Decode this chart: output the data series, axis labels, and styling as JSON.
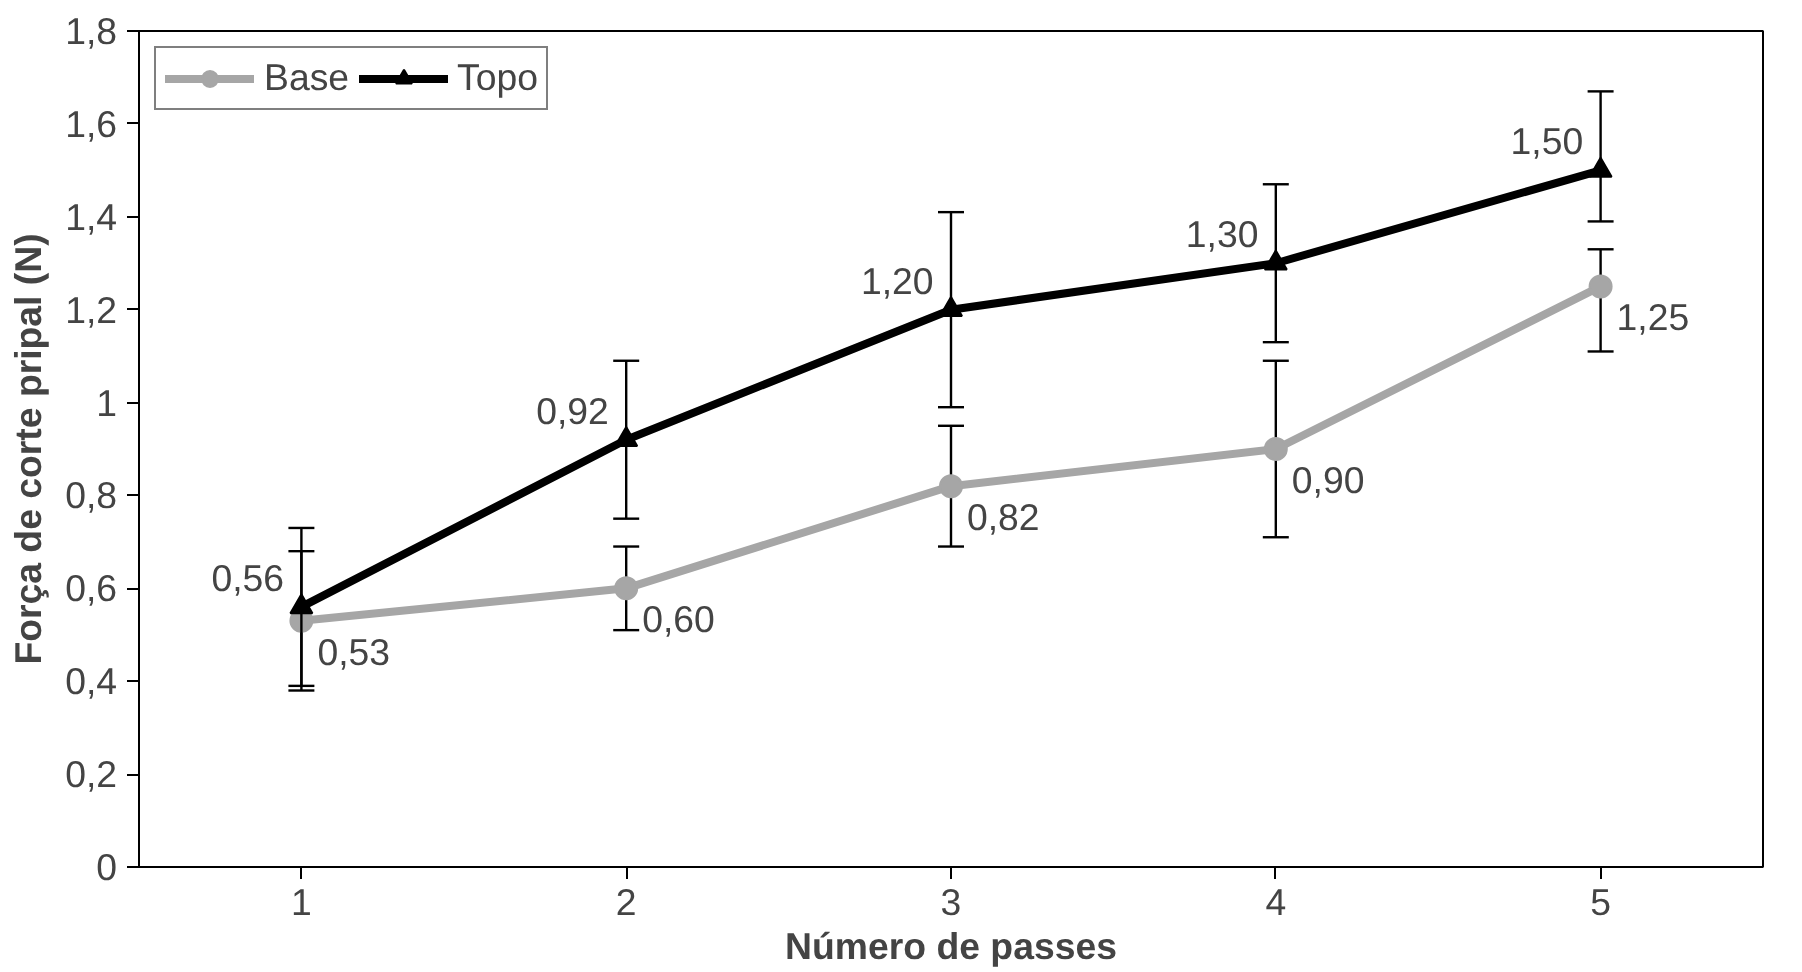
{
  "chart_data": {
    "type": "line",
    "xlabel": "Número de passes",
    "ylabel": "Força de corte pripal (N)",
    "categories": [
      "1",
      "2",
      "3",
      "4",
      "5"
    ],
    "series": [
      {
        "name": "Base",
        "color": "#a6a6a6",
        "marker": "circle",
        "values": [
          0.53,
          0.6,
          0.82,
          0.9,
          1.25
        ],
        "value_labels": [
          "0,53",
          "0,60",
          "0,82",
          "0,90",
          "1,25"
        ],
        "errors": [
          0.15,
          0.09,
          0.13,
          0.19,
          [
            1.11,
            1.33
          ]
        ]
      },
      {
        "name": "Topo",
        "color": "#000000",
        "marker": "triangle",
        "values": [
          0.56,
          0.92,
          1.2,
          1.3,
          1.5
        ],
        "value_labels": [
          "0,56",
          "0,92",
          "1,20",
          "1,30",
          "1,50"
        ],
        "errors": [
          0.17,
          0.17,
          0.21,
          0.17,
          [
            1.39,
            1.67
          ]
        ]
      }
    ],
    "ylim": [
      0,
      1.8
    ],
    "yticks": [
      0,
      {
        "value": 0.2,
        "label": "0,2"
      },
      {
        "value": 0.4,
        "label": "0,4"
      },
      {
        "value": 0.6,
        "label": "0,6"
      },
      {
        "value": 0.8,
        "label": "0,8"
      },
      1,
      {
        "value": 1.2,
        "label": "1,2"
      },
      {
        "value": 1.4,
        "label": "1,4"
      },
      {
        "value": 1.6,
        "label": "1,6"
      },
      {
        "value": 1.8,
        "label": "1,8"
      }
    ],
    "grid": false,
    "legend": "top left",
    "line_style": "solid"
  }
}
